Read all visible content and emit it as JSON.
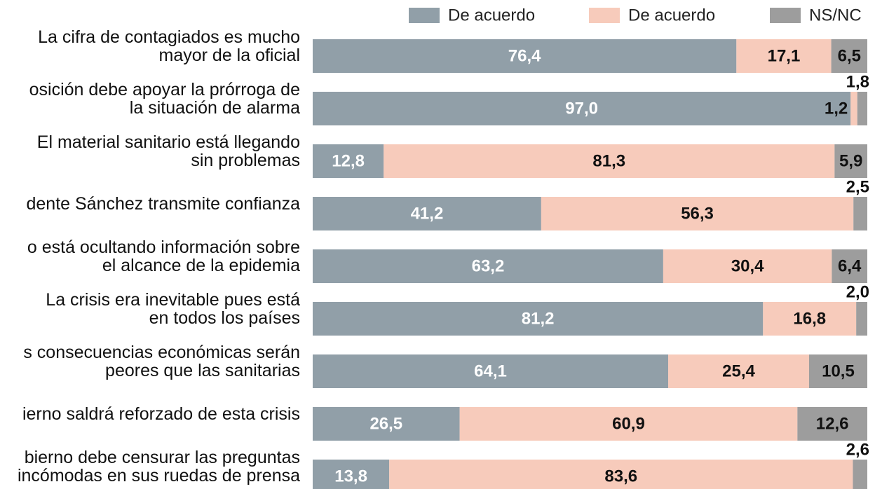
{
  "chart_data": {
    "type": "stacked-bar-horizontal",
    "categories": [
      "La cifra de contagiados es mucho\nmayor de la oficial",
      "osición debe apoyar la prórroga de\nla situación de alarma",
      "El material sanitario está llegando\nsin problemas",
      "dente Sánchez transmite confianza",
      "o está ocultando información sobre\nel alcance de la epidemia",
      "La crisis era inevitable pues está\nen todos los países",
      "s consecuencias económicas serán\npeores que las sanitarias",
      "ierno saldrá reforzado de esta crisis",
      "bierno debe censurar las preguntas\nincómodas en sus ruedas de prensa"
    ],
    "series": [
      {
        "name": "De acuerdo",
        "color": "#919fa8",
        "values": [
          76.4,
          97.0,
          12.8,
          41.2,
          63.2,
          81.2,
          64.1,
          26.5,
          13.8
        ],
        "value_labels": [
          "76,4",
          "97,0",
          "12,8",
          "41,2",
          "63,2",
          "81,2",
          "64,1",
          "26,5",
          "13,8"
        ]
      },
      {
        "name": "De acuerdo",
        "color": "#f7cbbb",
        "values": [
          17.1,
          1.2,
          81.3,
          56.3,
          30.4,
          16.8,
          25.4,
          60.9,
          83.6
        ],
        "value_labels": [
          "17,1",
          "1,2",
          "81,3",
          "56,3",
          "30,4",
          "16,8",
          "25,4",
          "60,9",
          "83,6"
        ]
      },
      {
        "name": "NS/NC",
        "color": "#9d9d9d",
        "values": [
          6.5,
          1.8,
          5.9,
          2.5,
          6.4,
          2.0,
          10.5,
          12.6,
          2.6
        ],
        "value_labels": [
          "6,5",
          "1,8",
          "5,9",
          "2,5",
          "6,4",
          "2,0",
          "10,5",
          "12,6",
          "2,6"
        ]
      }
    ],
    "xlim": [
      0,
      100
    ]
  }
}
